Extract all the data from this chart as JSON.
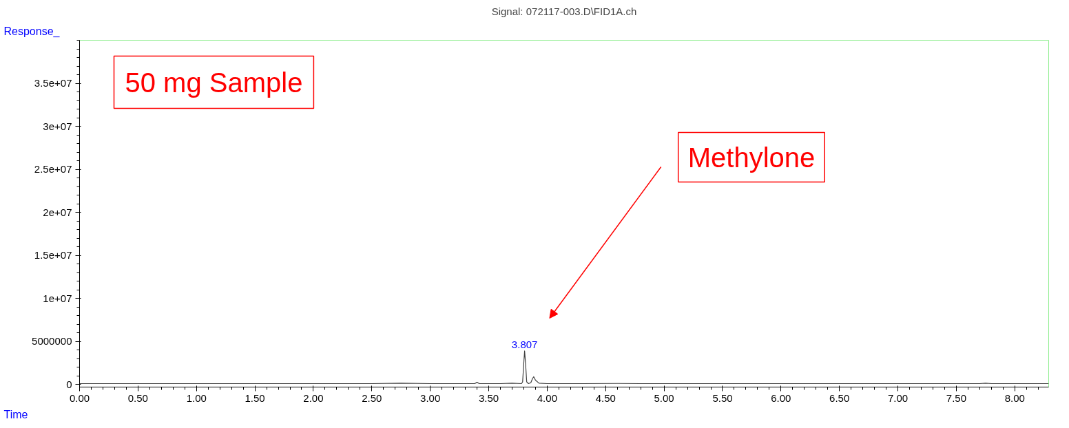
{
  "chart_data": {
    "type": "line",
    "title": "Signal: 072117-003.D\\FID1A.ch",
    "xlabel": "Time",
    "ylabel": "Response_",
    "x": [
      0,
      0.5,
      1,
      1.5,
      2,
      2.5,
      2.75,
      3,
      3.3,
      3.38,
      3.4,
      3.42,
      3.6,
      3.7,
      3.78,
      3.79,
      3.8,
      3.807,
      3.815,
      3.825,
      3.84,
      3.86,
      3.875,
      3.885,
      3.9,
      3.93,
      4,
      4.3,
      4.6,
      4.8,
      5,
      5.5,
      6,
      7,
      7.7,
      7.75,
      7.8,
      8.29
    ],
    "series": [
      {
        "color": "#404040",
        "values": [
          100000,
          100000,
          100000,
          100000,
          100000,
          100000,
          150000,
          100000,
          100000,
          100000,
          250000,
          100000,
          100000,
          150000,
          100000,
          300000,
          2500000,
          3900000,
          2500000,
          300000,
          100000,
          200000,
          700000,
          900000,
          500000,
          150000,
          100000,
          100000,
          120000,
          100000,
          100000,
          100000,
          100000,
          100000,
          100000,
          150000,
          100000,
          100000
        ]
      }
    ],
    "xlim": [
      0,
      8.29
    ],
    "ylim": [
      -300000,
      40000000
    ],
    "xticks": [
      {
        "value": 0,
        "label": "0.00"
      },
      {
        "value": 0.5,
        "label": "0.50"
      },
      {
        "value": 1,
        "label": "1.00"
      },
      {
        "value": 1.5,
        "label": "1.50"
      },
      {
        "value": 2,
        "label": "2.00"
      },
      {
        "value": 2.5,
        "label": "2.50"
      },
      {
        "value": 3,
        "label": "3.00"
      },
      {
        "value": 3.5,
        "label": "3.50"
      },
      {
        "value": 4,
        "label": "4.00"
      },
      {
        "value": 4.5,
        "label": "4.50"
      },
      {
        "value": 5,
        "label": "5.00"
      },
      {
        "value": 5.5,
        "label": "5.50"
      },
      {
        "value": 6,
        "label": "6.00"
      },
      {
        "value": 6.5,
        "label": "6.50"
      },
      {
        "value": 7,
        "label": "7.00"
      },
      {
        "value": 7.5,
        "label": "7.50"
      },
      {
        "value": 8,
        "label": "8.00"
      }
    ],
    "yticks": [
      0,
      5000000,
      {
        "value": 10000000,
        "label": "1e+07"
      },
      {
        "value": 15000000,
        "label": "1.5e+07"
      },
      {
        "value": 20000000,
        "label": "2e+07"
      },
      {
        "value": 25000000,
        "label": "2.5e+07"
      },
      {
        "value": 30000000,
        "label": "3e+07"
      },
      {
        "value": 35000000,
        "label": "3.5e+07"
      }
    ],
    "annotations": [
      "50 mg Sample",
      "Methylone",
      {
        "text": "3.807",
        "x": 3.807,
        "y": 3900000
      }
    ],
    "grid": false,
    "line_style": "solid",
    "marker": "none"
  }
}
